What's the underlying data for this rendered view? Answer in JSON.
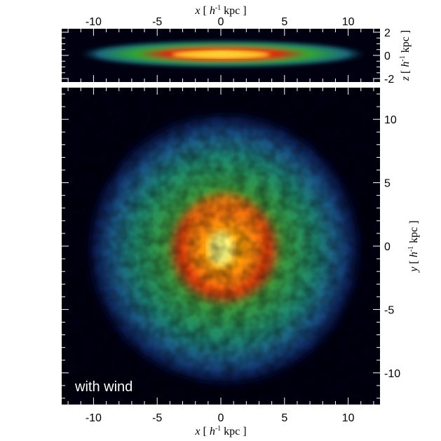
{
  "chart_data": [
    {
      "type": "heatmap",
      "panel": "edge-on",
      "xlabel": "x [ h-1 kpc ]",
      "ylabel": "z [ h-1 kpc ]",
      "xlim": [
        -12.5,
        12.5
      ],
      "ylim": [
        -2.3,
        2.3
      ],
      "xticks": [
        "-10",
        "-5",
        "0",
        "5",
        "10"
      ],
      "yticks": [
        "-2",
        "0",
        "2"
      ],
      "colormap": [
        "#000010",
        "#1a2a80",
        "#1f8f5f",
        "#2fb030",
        "#e02010",
        "#ff9000",
        "#ffff60"
      ]
    },
    {
      "type": "heatmap",
      "panel": "face-on",
      "xlabel": "x [ h-1 kpc ]",
      "ylabel": "y [ h-1 kpc ]",
      "xlim": [
        -12.5,
        12.5
      ],
      "ylim": [
        -12.5,
        12.5
      ],
      "xticks": [
        "-10",
        "-5",
        "0",
        "5",
        "10"
      ],
      "yticks": [
        "-10",
        "-5",
        "0",
        "5",
        "10"
      ],
      "annotation": "with wind"
    }
  ],
  "labels": {
    "x_var": "x",
    "z_var": "z",
    "y_var": "y",
    "h": "h",
    "exp": "-1",
    "open": "[ ",
    "unit": "kpc ]"
  }
}
